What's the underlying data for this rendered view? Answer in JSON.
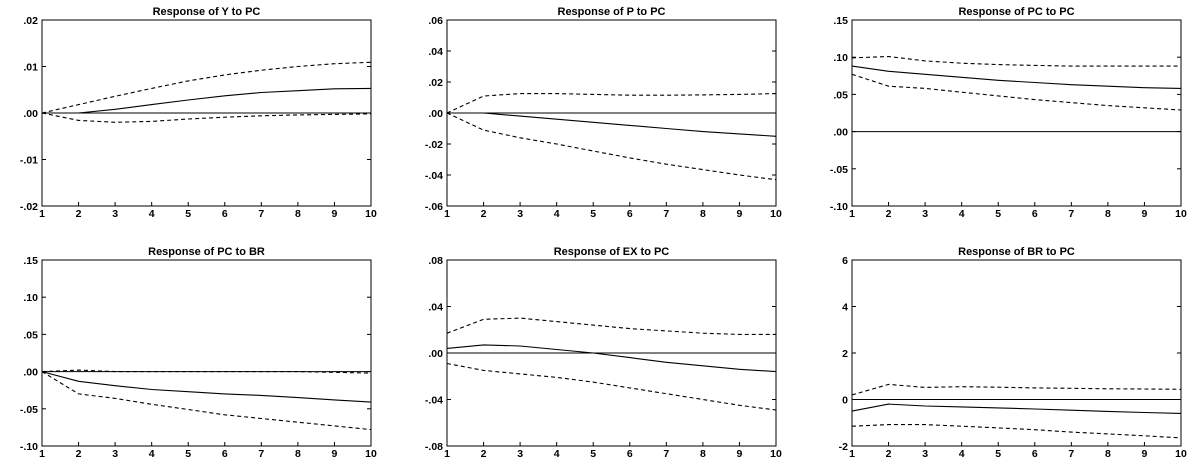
{
  "chart_data": [
    {
      "type": "line",
      "title": "Response of Y to PC",
      "x": [
        1,
        2,
        3,
        4,
        5,
        6,
        7,
        8,
        9,
        10
      ],
      "ylim": [
        -0.02,
        0.02
      ],
      "yticks": [
        -0.02,
        -0.01,
        0.0,
        0.01,
        0.02
      ],
      "ytick_labels": [
        "-.02",
        "-.01",
        ".00",
        ".01",
        ".02"
      ],
      "series": [
        {
          "style": "solid",
          "values": [
            0.0,
            0.0,
            0.0008,
            0.0018,
            0.0028,
            0.0037,
            0.0044,
            0.0048,
            0.0052,
            0.0053
          ]
        },
        {
          "style": "dashed",
          "values": [
            0.0,
            0.0018,
            0.0036,
            0.0053,
            0.0069,
            0.0082,
            0.0092,
            0.01,
            0.0106,
            0.0109
          ]
        },
        {
          "style": "dashed",
          "values": [
            0.0,
            -0.0016,
            -0.002,
            -0.0018,
            -0.0013,
            -0.0009,
            -0.0006,
            -0.0004,
            -0.0003,
            -0.0002
          ]
        }
      ]
    },
    {
      "type": "line",
      "title": "Response of P to PC",
      "x": [
        1,
        2,
        3,
        4,
        5,
        6,
        7,
        8,
        9,
        10
      ],
      "ylim": [
        -0.06,
        0.06
      ],
      "yticks": [
        -0.06,
        -0.04,
        -0.02,
        0.0,
        0.02,
        0.04,
        0.06
      ],
      "ytick_labels": [
        "-.06",
        "-.04",
        "-.02",
        ".00",
        ".02",
        ".04",
        ".06"
      ],
      "series": [
        {
          "style": "solid",
          "values": [
            0.0,
            0.0,
            -0.002,
            -0.004,
            -0.006,
            -0.008,
            -0.01,
            -0.012,
            -0.0135,
            -0.015
          ]
        },
        {
          "style": "dashed",
          "values": [
            0.0,
            0.011,
            0.0125,
            0.0125,
            0.012,
            0.0115,
            0.0115,
            0.0117,
            0.012,
            0.0125
          ]
        },
        {
          "style": "dashed",
          "values": [
            0.0,
            -0.011,
            -0.016,
            -0.02,
            -0.0245,
            -0.029,
            -0.033,
            -0.0365,
            -0.04,
            -0.043
          ]
        }
      ]
    },
    {
      "type": "line",
      "title": "Response of PC to PC",
      "x": [
        1,
        2,
        3,
        4,
        5,
        6,
        7,
        8,
        9,
        10
      ],
      "ylim": [
        -0.1,
        0.15
      ],
      "yticks": [
        -0.1,
        -0.05,
        0.0,
        0.05,
        0.1,
        0.15
      ],
      "ytick_labels": [
        "-.10",
        "-.05",
        ".00",
        ".05",
        ".10",
        ".15"
      ],
      "series": [
        {
          "style": "solid",
          "values": [
            0.088,
            0.081,
            0.077,
            0.073,
            0.069,
            0.066,
            0.063,
            0.061,
            0.059,
            0.058
          ]
        },
        {
          "style": "dashed",
          "values": [
            0.099,
            0.101,
            0.095,
            0.092,
            0.09,
            0.089,
            0.088,
            0.088,
            0.088,
            0.088
          ]
        },
        {
          "style": "dashed",
          "values": [
            0.077,
            0.061,
            0.058,
            0.053,
            0.048,
            0.043,
            0.039,
            0.035,
            0.032,
            0.029
          ]
        }
      ]
    },
    {
      "type": "line",
      "title": "Response of PC to BR",
      "x": [
        1,
        2,
        3,
        4,
        5,
        6,
        7,
        8,
        9,
        10
      ],
      "ylim": [
        -0.1,
        0.15
      ],
      "yticks": [
        -0.1,
        -0.05,
        0.0,
        0.05,
        0.1,
        0.15
      ],
      "ytick_labels": [
        "-.10",
        "-.05",
        ".00",
        ".05",
        ".10",
        ".15"
      ],
      "series": [
        {
          "style": "solid",
          "values": [
            0.0,
            -0.013,
            -0.019,
            -0.024,
            -0.027,
            -0.03,
            -0.032,
            -0.035,
            -0.038,
            -0.041
          ]
        },
        {
          "style": "dashed",
          "values": [
            0.0,
            0.002,
            0.0,
            0.0,
            0.0,
            0.0,
            0.0,
            0.0,
            -0.001,
            -0.002
          ]
        },
        {
          "style": "dashed",
          "values": [
            0.0,
            -0.03,
            -0.036,
            -0.044,
            -0.051,
            -0.058,
            -0.063,
            -0.068,
            -0.073,
            -0.078
          ]
        }
      ]
    },
    {
      "type": "line",
      "title": "Response of EX to PC",
      "x": [
        1,
        2,
        3,
        4,
        5,
        6,
        7,
        8,
        9,
        10
      ],
      "ylim": [
        -0.08,
        0.08
      ],
      "yticks": [
        -0.08,
        -0.04,
        0.0,
        0.04,
        0.08
      ],
      "ytick_labels": [
        "-.08",
        "-.04",
        ".00",
        ".04",
        ".08"
      ],
      "series": [
        {
          "style": "solid",
          "values": [
            0.004,
            0.007,
            0.006,
            0.003,
            0.0,
            -0.004,
            -0.008,
            -0.011,
            -0.014,
            -0.016
          ]
        },
        {
          "style": "dashed",
          "values": [
            0.017,
            0.029,
            0.03,
            0.027,
            0.024,
            0.021,
            0.019,
            0.017,
            0.016,
            0.016
          ]
        },
        {
          "style": "dashed",
          "values": [
            -0.009,
            -0.015,
            -0.018,
            -0.021,
            -0.025,
            -0.03,
            -0.035,
            -0.04,
            -0.045,
            -0.049
          ]
        }
      ]
    },
    {
      "type": "line",
      "title": "Response of BR to PC",
      "x": [
        1,
        2,
        3,
        4,
        5,
        6,
        7,
        8,
        9,
        10
      ],
      "ylim": [
        -2,
        6
      ],
      "yticks": [
        -2,
        0,
        2,
        4,
        6
      ],
      "ytick_labels": [
        "-2",
        "0",
        "2",
        "4",
        "6"
      ],
      "series": [
        {
          "style": "solid",
          "values": [
            -0.5,
            -0.2,
            -0.28,
            -0.32,
            -0.36,
            -0.41,
            -0.46,
            -0.51,
            -0.56,
            -0.6
          ]
        },
        {
          "style": "dashed",
          "values": [
            0.2,
            0.65,
            0.52,
            0.55,
            0.53,
            0.5,
            0.48,
            0.46,
            0.45,
            0.44
          ]
        },
        {
          "style": "dashed",
          "values": [
            -1.15,
            -1.08,
            -1.08,
            -1.15,
            -1.22,
            -1.3,
            -1.4,
            -1.48,
            -1.56,
            -1.65
          ]
        }
      ]
    }
  ]
}
